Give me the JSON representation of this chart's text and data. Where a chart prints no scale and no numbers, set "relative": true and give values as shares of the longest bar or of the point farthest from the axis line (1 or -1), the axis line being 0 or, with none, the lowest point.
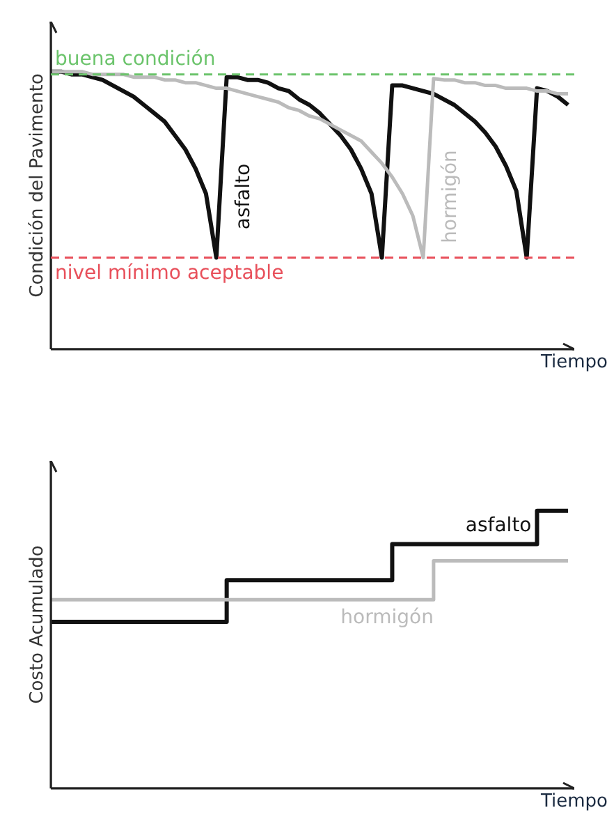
{
  "chart_data": [
    {
      "type": "line",
      "relative": true,
      "ylabel": "Condición del Pavimento",
      "xlabel": "Tiempo",
      "line_style": "solid",
      "categories": [
        null,
        null,
        null,
        null,
        null,
        null,
        null,
        null,
        null,
        null,
        null,
        null,
        null,
        null,
        null,
        null,
        null,
        null,
        null,
        null,
        null,
        null,
        null,
        null,
        null,
        null,
        null,
        null,
        null,
        null,
        null,
        null,
        null,
        null,
        null,
        null,
        null,
        null,
        null,
        null,
        null,
        null,
        null,
        null,
        null,
        null,
        null,
        null,
        null,
        null,
        null
      ],
      "series": [
        {
          "name": "asfalto",
          "color": "#111111",
          "values": [
            1.0,
            1.0,
            0.99,
            0.99,
            0.98,
            0.97,
            0.95,
            0.93,
            0.91,
            0.88,
            0.85,
            0.82,
            0.77,
            0.72,
            0.65,
            0.56,
            0.33,
            0.98,
            0.98,
            0.97,
            0.97,
            0.96,
            0.94,
            0.93,
            0.9,
            0.88,
            0.85,
            0.81,
            0.77,
            0.72,
            0.65,
            0.56,
            0.33,
            0.95,
            0.95,
            0.94,
            0.93,
            0.92,
            0.9,
            0.88,
            0.85,
            0.82,
            0.78,
            0.73,
            0.66,
            0.57,
            0.33,
            0.94,
            0.93,
            0.91,
            0.88
          ]
        },
        {
          "name": "hormigón",
          "color": "#bbbbbb",
          "values": [
            1.0,
            1.0,
            1.0,
            1.0,
            0.99,
            0.99,
            0.99,
            0.99,
            0.98,
            0.98,
            0.98,
            0.97,
            0.97,
            0.96,
            0.96,
            0.95,
            0.94,
            0.94,
            0.93,
            0.92,
            0.91,
            0.9,
            0.89,
            0.87,
            0.86,
            0.84,
            0.83,
            0.81,
            0.79,
            0.77,
            0.75,
            0.71,
            0.67,
            0.62,
            0.56,
            0.48,
            0.33,
            0.975,
            0.97,
            0.97,
            0.96,
            0.96,
            0.95,
            0.95,
            0.94,
            0.94,
            0.94,
            0.93,
            0.93,
            0.92,
            0.92
          ]
        }
      ],
      "ref_lines": [
        {
          "axis": "y",
          "value": 0.99,
          "label": "buena condición",
          "color": "#6cc46c",
          "line_style": "dashed"
        },
        {
          "axis": "y",
          "value": 0.33,
          "label": "nivel mínimo aceptable",
          "color": "#e8505b",
          "line_style": "dashed"
        }
      ]
    },
    {
      "type": "step",
      "relative": true,
      "ylabel": "Costo Acumulado",
      "xlabel": "Tiempo",
      "line_style": "solid",
      "categories": [
        null,
        null,
        null,
        null,
        null,
        null,
        null,
        null,
        null,
        null,
        null,
        null,
        null,
        null,
        null,
        null,
        null,
        null,
        null,
        null,
        null,
        null,
        null,
        null,
        null,
        null,
        null,
        null,
        null,
        null,
        null,
        null,
        null,
        null,
        null,
        null,
        null,
        null,
        null,
        null,
        null,
        null,
        null,
        null,
        null,
        null,
        null,
        null,
        null,
        null,
        null
      ],
      "series": [
        {
          "name": "asfalto",
          "color": "#111111",
          "values": [
            0.6,
            0.6,
            0.6,
            0.6,
            0.6,
            0.6,
            0.6,
            0.6,
            0.6,
            0.6,
            0.6,
            0.6,
            0.6,
            0.6,
            0.6,
            0.6,
            0.6,
            0.75,
            0.75,
            0.75,
            0.75,
            0.75,
            0.75,
            0.75,
            0.75,
            0.75,
            0.75,
            0.75,
            0.75,
            0.75,
            0.75,
            0.75,
            0.75,
            0.88,
            0.88,
            0.88,
            0.88,
            0.88,
            0.88,
            0.88,
            0.88,
            0.88,
            0.88,
            0.88,
            0.88,
            0.88,
            0.88,
            1.0,
            1.0,
            1.0,
            1.0
          ]
        },
        {
          "name": "hormigón",
          "color": "#bbbbbb",
          "values": [
            0.68,
            0.68,
            0.68,
            0.68,
            0.68,
            0.68,
            0.68,
            0.68,
            0.68,
            0.68,
            0.68,
            0.68,
            0.68,
            0.68,
            0.68,
            0.68,
            0.68,
            0.68,
            0.68,
            0.68,
            0.68,
            0.68,
            0.68,
            0.68,
            0.68,
            0.68,
            0.68,
            0.68,
            0.68,
            0.68,
            0.68,
            0.68,
            0.68,
            0.68,
            0.68,
            0.68,
            0.68,
            0.82,
            0.82,
            0.82,
            0.82,
            0.82,
            0.82,
            0.82,
            0.82,
            0.82,
            0.82,
            0.82,
            0.82,
            0.82,
            0.82
          ]
        }
      ]
    }
  ]
}
